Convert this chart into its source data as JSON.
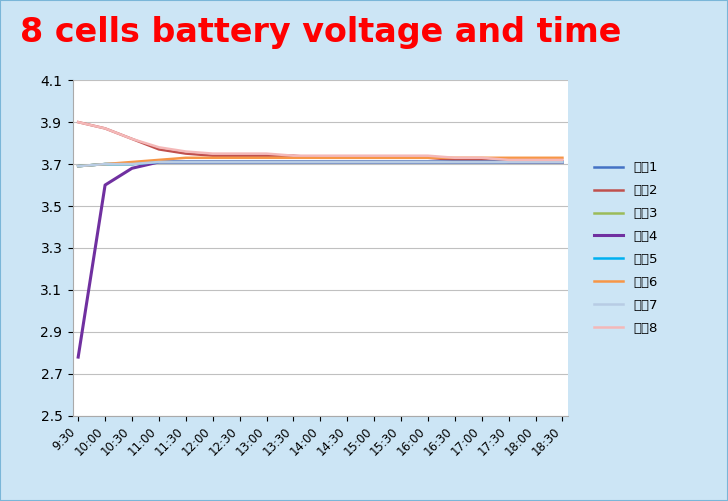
{
  "title": "8 cells battery voltage and time",
  "title_color": "#ff0000",
  "title_fontsize": 24,
  "background_color": "#ffffff",
  "x_labels": [
    "9:30",
    "10:00",
    "10:30",
    "11:00",
    "11:30",
    "12:00",
    "12:30",
    "13:00",
    "13:30",
    "14:00",
    "14:30",
    "15:00",
    "15:30",
    "16:00",
    "16:30",
    "17:00",
    "17:30",
    "18:00",
    "18:30"
  ],
  "ylim": [
    2.5,
    4.1
  ],
  "yticks": [
    2.5,
    2.7,
    2.9,
    3.1,
    3.3,
    3.5,
    3.7,
    3.9,
    4.1
  ],
  "series": [
    {
      "name": "电池1",
      "color": "#4472c4",
      "linewidth": 1.8,
      "values": [
        3.69,
        3.7,
        3.7,
        3.71,
        3.71,
        3.71,
        3.71,
        3.71,
        3.71,
        3.71,
        3.71,
        3.71,
        3.71,
        3.71,
        3.71,
        3.71,
        3.71,
        3.71,
        3.71
      ]
    },
    {
      "name": "电池2",
      "color": "#c0504d",
      "linewidth": 1.8,
      "values": [
        3.9,
        3.87,
        3.82,
        3.77,
        3.75,
        3.74,
        3.74,
        3.74,
        3.74,
        3.73,
        3.73,
        3.73,
        3.73,
        3.73,
        3.72,
        3.72,
        3.71,
        3.71,
        3.71
      ]
    },
    {
      "name": "电池3",
      "color": "#9bbb59",
      "linewidth": 1.8,
      "values": [
        3.69,
        3.7,
        3.7,
        3.71,
        3.71,
        3.71,
        3.71,
        3.71,
        3.71,
        3.71,
        3.71,
        3.71,
        3.71,
        3.71,
        3.71,
        3.71,
        3.71,
        3.71,
        3.71
      ]
    },
    {
      "name": "电池4",
      "color": "#7030a0",
      "linewidth": 2.2,
      "values": [
        2.78,
        3.6,
        3.68,
        3.71,
        3.71,
        3.71,
        3.71,
        3.71,
        3.71,
        3.71,
        3.71,
        3.71,
        3.71,
        3.71,
        3.71,
        3.71,
        3.71,
        3.71,
        3.71
      ]
    },
    {
      "name": "电池5",
      "color": "#00b0f0",
      "linewidth": 1.8,
      "values": [
        3.69,
        3.7,
        3.7,
        3.71,
        3.71,
        3.71,
        3.71,
        3.71,
        3.71,
        3.71,
        3.71,
        3.71,
        3.71,
        3.71,
        3.71,
        3.71,
        3.71,
        3.71,
        3.71
      ]
    },
    {
      "name": "电池6",
      "color": "#f79646",
      "linewidth": 1.8,
      "values": [
        3.69,
        3.7,
        3.71,
        3.72,
        3.73,
        3.73,
        3.73,
        3.73,
        3.73,
        3.73,
        3.73,
        3.73,
        3.73,
        3.73,
        3.73,
        3.73,
        3.73,
        3.73,
        3.73
      ]
    },
    {
      "name": "电池7",
      "color": "#b8cce4",
      "linewidth": 1.8,
      "values": [
        3.69,
        3.7,
        3.7,
        3.71,
        3.71,
        3.71,
        3.71,
        3.71,
        3.71,
        3.71,
        3.71,
        3.71,
        3.71,
        3.71,
        3.71,
        3.71,
        3.71,
        3.71,
        3.71
      ]
    },
    {
      "name": "电池8",
      "color": "#f4b8b8",
      "linewidth": 1.8,
      "values": [
        3.9,
        3.87,
        3.82,
        3.78,
        3.76,
        3.75,
        3.75,
        3.75,
        3.74,
        3.74,
        3.74,
        3.74,
        3.74,
        3.74,
        3.73,
        3.73,
        3.72,
        3.72,
        3.72
      ]
    }
  ],
  "grid_color": "#c0c0c0",
  "grid_linewidth": 0.8,
  "outer_bg": "#cce5f5",
  "chart_bg": "#ffffff",
  "frame_color": "#7ab6d8",
  "legend_fontsize": 9.5
}
